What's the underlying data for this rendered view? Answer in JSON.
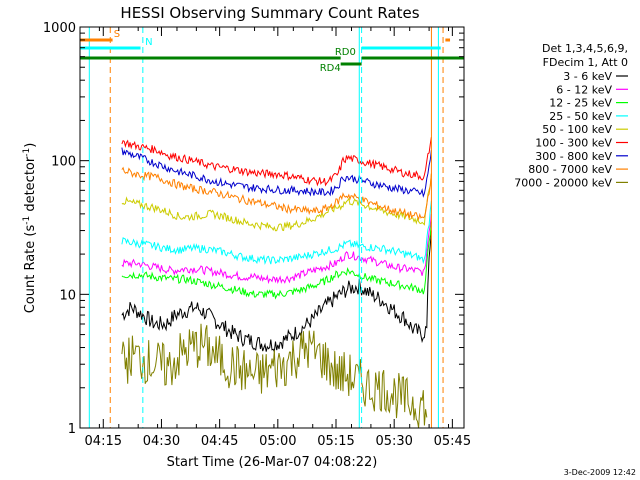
{
  "chart_data": {
    "type": "line",
    "title": "HESSI Observing Summary Count Rates",
    "xlabel": "Start Time (26-Mar-07 04:08:22)",
    "ylabel_main": "Count Rate (s",
    "ylabel_sup1": "-1",
    "ylabel_mid": " detector",
    "ylabel_sup2": "-1",
    "ylabel_end": ")",
    "y_scale": "log",
    "ylim": [
      1,
      1000
    ],
    "y_ticks": [
      {
        "v": 1,
        "label": "1"
      },
      {
        "v": 10,
        "label": "10"
      },
      {
        "v": 100,
        "label": "100"
      },
      {
        "v": 1000,
        "label": "1000"
      }
    ],
    "xlim": [
      4.15,
      5.8
    ],
    "x_ticks": [
      {
        "v": 4.25,
        "label": "04:15"
      },
      {
        "v": 4.5,
        "label": "04:30"
      },
      {
        "v": 4.75,
        "label": "04:45"
      },
      {
        "v": 5.0,
        "label": "05:00"
      },
      {
        "v": 5.25,
        "label": "05:15"
      },
      {
        "v": 5.5,
        "label": "05:30"
      },
      {
        "v": 5.75,
        "label": "05:45"
      }
    ],
    "legend_header": [
      "Det 1,3,4,5,6,9,",
      "FDecim 1, Att 0"
    ],
    "legend_position": "right",
    "series": [
      {
        "name": "3 - 6 keV",
        "color": "#000000",
        "points": [
          [
            4.33,
            7
          ],
          [
            4.37,
            8
          ],
          [
            4.42,
            7
          ],
          [
            4.47,
            6
          ],
          [
            4.52,
            6
          ],
          [
            4.56,
            7
          ],
          [
            4.6,
            7.5
          ],
          [
            4.65,
            8
          ],
          [
            4.7,
            7
          ],
          [
            4.75,
            6
          ],
          [
            4.8,
            5.2
          ],
          [
            4.85,
            4.7
          ],
          [
            4.9,
            4.4
          ],
          [
            4.95,
            4.2
          ],
          [
            5.0,
            4.3
          ],
          [
            5.05,
            4.8
          ],
          [
            5.1,
            5.5
          ],
          [
            5.15,
            6.5
          ],
          [
            5.2,
            8
          ],
          [
            5.25,
            9.5
          ],
          [
            5.3,
            11
          ],
          [
            5.35,
            11.5
          ],
          [
            5.4,
            10
          ],
          [
            5.45,
            9
          ],
          [
            5.5,
            7.5
          ],
          [
            5.55,
            6.5
          ],
          [
            5.58,
            5.5
          ],
          [
            5.62,
            5
          ],
          [
            5.64,
            5.5
          ],
          [
            5.65,
            20
          ],
          [
            5.66,
            30
          ]
        ]
      },
      {
        "name": "6 - 12 keV",
        "color": "#ff00ff",
        "points": [
          [
            4.33,
            17
          ],
          [
            4.4,
            17
          ],
          [
            4.47,
            16
          ],
          [
            4.55,
            15
          ],
          [
            4.6,
            15.5
          ],
          [
            4.65,
            15.5
          ],
          [
            4.7,
            15
          ],
          [
            4.75,
            14.5
          ],
          [
            4.8,
            14
          ],
          [
            4.85,
            13.5
          ],
          [
            4.9,
            13.5
          ],
          [
            4.95,
            13
          ],
          [
            5.0,
            13
          ],
          [
            5.05,
            13.2
          ],
          [
            5.1,
            14
          ],
          [
            5.15,
            15
          ],
          [
            5.2,
            16
          ],
          [
            5.25,
            17
          ],
          [
            5.28,
            19
          ],
          [
            5.3,
            20
          ],
          [
            5.35,
            19
          ],
          [
            5.4,
            18
          ],
          [
            5.45,
            17
          ],
          [
            5.5,
            16
          ],
          [
            5.55,
            15.5
          ],
          [
            5.6,
            15
          ],
          [
            5.63,
            14.5
          ],
          [
            5.65,
            30
          ],
          [
            5.66,
            40
          ]
        ]
      },
      {
        "name": "12 - 25 keV",
        "color": "#00ff00",
        "points": [
          [
            4.33,
            14
          ],
          [
            4.4,
            14
          ],
          [
            4.47,
            13.5
          ],
          [
            4.55,
            13
          ],
          [
            4.6,
            13
          ],
          [
            4.65,
            12.5
          ],
          [
            4.7,
            12
          ],
          [
            4.75,
            11.5
          ],
          [
            4.8,
            11
          ],
          [
            4.85,
            10.5
          ],
          [
            4.9,
            10
          ],
          [
            4.95,
            10
          ],
          [
            5.0,
            10
          ],
          [
            5.05,
            10.3
          ],
          [
            5.1,
            10.8
          ],
          [
            5.15,
            11.5
          ],
          [
            5.2,
            12.5
          ],
          [
            5.25,
            14
          ],
          [
            5.3,
            15
          ],
          [
            5.35,
            14
          ],
          [
            5.4,
            13
          ],
          [
            5.45,
            12.5
          ],
          [
            5.5,
            12
          ],
          [
            5.55,
            11.5
          ],
          [
            5.6,
            11
          ],
          [
            5.63,
            10.5
          ],
          [
            5.65,
            25
          ],
          [
            5.66,
            35
          ]
        ]
      },
      {
        "name": "25 - 50 keV",
        "color": "#00ffff",
        "points": [
          [
            4.33,
            25
          ],
          [
            4.4,
            24
          ],
          [
            4.47,
            23
          ],
          [
            4.52,
            22
          ],
          [
            4.58,
            21.5
          ],
          [
            4.62,
            22
          ],
          [
            4.68,
            22
          ],
          [
            4.75,
            21
          ],
          [
            4.8,
            20
          ],
          [
            4.85,
            19
          ],
          [
            4.9,
            18.5
          ],
          [
            4.95,
            18
          ],
          [
            5.0,
            18
          ],
          [
            5.05,
            18.5
          ],
          [
            5.1,
            19
          ],
          [
            5.15,
            20
          ],
          [
            5.2,
            21
          ],
          [
            5.25,
            22
          ],
          [
            5.3,
            24
          ],
          [
            5.35,
            23
          ],
          [
            5.4,
            22.5
          ],
          [
            5.45,
            22
          ],
          [
            5.5,
            21
          ],
          [
            5.55,
            20
          ],
          [
            5.6,
            19
          ],
          [
            5.63,
            18
          ],
          [
            5.65,
            35
          ],
          [
            5.66,
            50
          ]
        ]
      },
      {
        "name": "50 - 100 keV",
        "color": "#cccc00",
        "points": [
          [
            4.33,
            50
          ],
          [
            4.38,
            48
          ],
          [
            4.43,
            46
          ],
          [
            4.48,
            44
          ],
          [
            4.53,
            41
          ],
          [
            4.58,
            38
          ],
          [
            4.62,
            38
          ],
          [
            4.67,
            39
          ],
          [
            4.72,
            40
          ],
          [
            4.77,
            38
          ],
          [
            4.82,
            36
          ],
          [
            4.87,
            34
          ],
          [
            4.92,
            33
          ],
          [
            4.97,
            32
          ],
          [
            5.02,
            32
          ],
          [
            5.07,
            33
          ],
          [
            5.12,
            35
          ],
          [
            5.17,
            38
          ],
          [
            5.22,
            42
          ],
          [
            5.27,
            46
          ],
          [
            5.3,
            50
          ],
          [
            5.35,
            48
          ],
          [
            5.4,
            45
          ],
          [
            5.45,
            42
          ],
          [
            5.5,
            40
          ],
          [
            5.55,
            38
          ],
          [
            5.6,
            36
          ],
          [
            5.63,
            35
          ],
          [
            5.65,
            60
          ],
          [
            5.66,
            80
          ]
        ]
      },
      {
        "name": "100 - 300 keV",
        "color": "#ff0000",
        "points": [
          [
            4.33,
            140
          ],
          [
            4.38,
            130
          ],
          [
            4.43,
            125
          ],
          [
            4.48,
            120
          ],
          [
            4.53,
            110
          ],
          [
            4.58,
            105
          ],
          [
            4.63,
            100
          ],
          [
            4.68,
            95
          ],
          [
            4.73,
            90
          ],
          [
            4.78,
            88
          ],
          [
            4.83,
            85
          ],
          [
            4.88,
            82
          ],
          [
            4.93,
            80
          ],
          [
            4.98,
            80
          ],
          [
            5.03,
            78
          ],
          [
            5.08,
            75
          ],
          [
            5.13,
            72
          ],
          [
            5.18,
            70
          ],
          [
            5.22,
            70
          ],
          [
            5.26,
            80
          ],
          [
            5.28,
            100
          ],
          [
            5.3,
            105
          ],
          [
            5.35,
            100
          ],
          [
            5.4,
            95
          ],
          [
            5.45,
            90
          ],
          [
            5.5,
            85
          ],
          [
            5.55,
            80
          ],
          [
            5.6,
            78
          ],
          [
            5.63,
            75
          ],
          [
            5.65,
            120
          ],
          [
            5.66,
            150
          ]
        ]
      },
      {
        "name": "300 - 800 keV",
        "color": "#0000cc",
        "points": [
          [
            4.33,
            118
          ],
          [
            4.38,
            110
          ],
          [
            4.43,
            102
          ],
          [
            4.48,
            95
          ],
          [
            4.53,
            88
          ],
          [
            4.58,
            82
          ],
          [
            4.63,
            78
          ],
          [
            4.68,
            74
          ],
          [
            4.73,
            70
          ],
          [
            4.78,
            67
          ],
          [
            4.83,
            65
          ],
          [
            4.88,
            63
          ],
          [
            4.93,
            62
          ],
          [
            4.98,
            61
          ],
          [
            5.03,
            60
          ],
          [
            5.08,
            60
          ],
          [
            5.13,
            59
          ],
          [
            5.18,
            58
          ],
          [
            5.22,
            58
          ],
          [
            5.26,
            65
          ],
          [
            5.28,
            75
          ],
          [
            5.3,
            75
          ],
          [
            5.35,
            72
          ],
          [
            5.4,
            68
          ],
          [
            5.45,
            65
          ],
          [
            5.5,
            62
          ],
          [
            5.55,
            60
          ],
          [
            5.6,
            58
          ],
          [
            5.63,
            56
          ],
          [
            5.65,
            90
          ],
          [
            5.66,
            120
          ]
        ]
      },
      {
        "name": "800 - 7000 keV",
        "color": "#ff8000",
        "points": [
          [
            4.33,
            85
          ],
          [
            4.38,
            80
          ],
          [
            4.43,
            77
          ],
          [
            4.48,
            75
          ],
          [
            4.53,
            70
          ],
          [
            4.58,
            65
          ],
          [
            4.63,
            62
          ],
          [
            4.68,
            60
          ],
          [
            4.73,
            58
          ],
          [
            4.78,
            55
          ],
          [
            4.83,
            52
          ],
          [
            4.88,
            50
          ],
          [
            4.93,
            48
          ],
          [
            4.98,
            46
          ],
          [
            5.03,
            44
          ],
          [
            5.08,
            43
          ],
          [
            5.13,
            42
          ],
          [
            5.18,
            42
          ],
          [
            5.22,
            45
          ],
          [
            5.26,
            50
          ],
          [
            5.28,
            55
          ],
          [
            5.3,
            55
          ],
          [
            5.35,
            52
          ],
          [
            5.4,
            48
          ],
          [
            5.45,
            45
          ],
          [
            5.5,
            42
          ],
          [
            5.55,
            40
          ],
          [
            5.6,
            38
          ],
          [
            5.63,
            37
          ],
          [
            5.65,
            60
          ],
          [
            5.66,
            80
          ]
        ]
      },
      {
        "name": "7000 - 20000 keV",
        "color": "#808000",
        "points": [
          [
            4.33,
            3
          ],
          [
            4.38,
            3.5
          ],
          [
            4.43,
            3.2
          ],
          [
            4.48,
            3
          ],
          [
            4.53,
            2.8
          ],
          [
            4.58,
            3.5
          ],
          [
            4.63,
            4
          ],
          [
            4.68,
            4.2
          ],
          [
            4.73,
            3.5
          ],
          [
            4.78,
            3
          ],
          [
            4.83,
            2.8
          ],
          [
            4.88,
            2.5
          ],
          [
            4.93,
            2.5
          ],
          [
            4.98,
            2.8
          ],
          [
            5.03,
            3
          ],
          [
            5.08,
            3.5
          ],
          [
            5.13,
            4
          ],
          [
            5.18,
            3.5
          ],
          [
            5.22,
            3
          ],
          [
            5.26,
            2.5
          ],
          [
            5.3,
            2.5
          ],
          [
            5.35,
            2.2
          ],
          [
            5.4,
            2
          ],
          [
            5.45,
            2
          ],
          [
            5.5,
            1.8
          ],
          [
            5.55,
            1.6
          ],
          [
            5.6,
            1.5
          ],
          [
            5.63,
            1.5
          ],
          [
            5.64,
            1.2
          ]
        ]
      }
    ],
    "vertical_markers": [
      {
        "x": 4.19,
        "color": "#00ffff",
        "style": "solid"
      },
      {
        "x": 4.28,
        "color": "#ff8000",
        "style": "dashed"
      },
      {
        "x": 4.42,
        "color": "#00ffff",
        "style": "dashed"
      },
      {
        "x": 5.35,
        "color": "#00ffff",
        "style": "solid"
      },
      {
        "x": 5.36,
        "color": "#00ffff",
        "style": "dashed"
      },
      {
        "x": 5.66,
        "color": "#ff8000",
        "style": "solid"
      },
      {
        "x": 5.69,
        "color": "#00ffff",
        "style": "solid"
      },
      {
        "x": 5.71,
        "color": "#ff8000",
        "style": "dashed"
      }
    ],
    "state_bars": [
      {
        "label": "S",
        "color": "#ff8000",
        "segments": [
          [
            4.15,
            4.29
          ],
          [
            5.72,
            5.74
          ]
        ]
      },
      {
        "label": "N",
        "color": "#00ffff",
        "segments": [
          [
            4.15,
            4.41
          ],
          [
            5.36,
            5.7
          ]
        ]
      },
      {
        "label": "RD0",
        "color": "#008000",
        "segments": [
          [
            4.15,
            5.27
          ],
          [
            5.36,
            5.8
          ]
        ]
      },
      {
        "label": "RD4",
        "color": "#008000",
        "segments": [
          [
            5.27,
            5.36
          ]
        ]
      }
    ],
    "footer_date": "3-Dec-2009 12:42",
    "grid": false
  }
}
